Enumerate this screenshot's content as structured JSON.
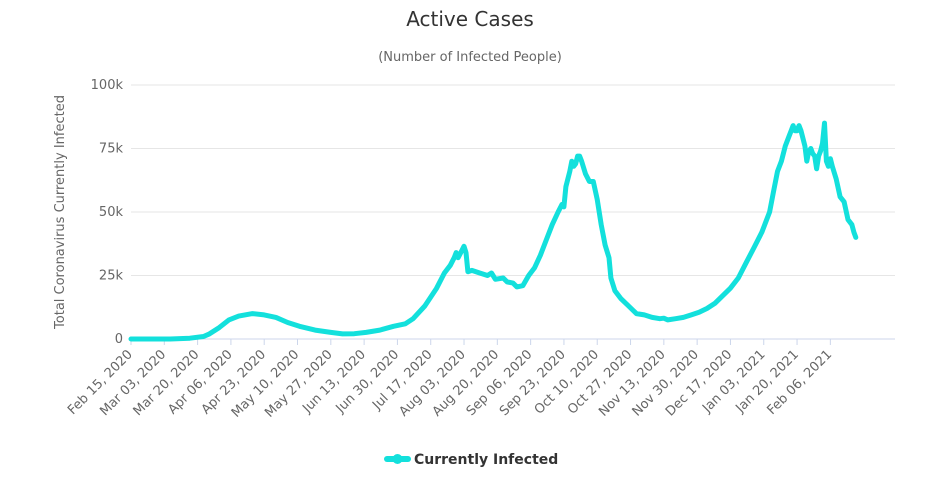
{
  "chart_data": {
    "type": "line",
    "title": "Active Cases",
    "subtitle": "(Number of Infected People)",
    "ylabel": "Total Coronavirus Currently Infected",
    "xlabel": "",
    "ylim": [
      0,
      100000
    ],
    "y_ticks": [
      0,
      25000,
      50000,
      75000,
      100000
    ],
    "y_tick_labels": [
      "0",
      "25k",
      "50k",
      "75k",
      "100k"
    ],
    "x_range": [
      0,
      390
    ],
    "x_ticks": [
      0,
      17,
      34,
      51,
      68,
      85,
      102,
      119,
      136,
      153,
      170,
      187,
      204,
      221,
      238,
      255,
      272,
      289,
      306,
      323,
      340,
      357
    ],
    "x_tick_labels": [
      "Feb 15, 2020",
      "Mar 03, 2020",
      "Mar 20, 2020",
      "Apr 06, 2020",
      "Apr 23, 2020",
      "May 10, 2020",
      "May 27, 2020",
      "Jun 13, 2020",
      "Jun 30, 2020",
      "Jul 17, 2020",
      "Aug 03, 2020",
      "Aug 20, 2020",
      "Sep 06, 2020",
      "Sep 23, 2020",
      "Oct 10, 2020",
      "Oct 27, 2020",
      "Nov 13, 2020",
      "Nov 30, 2020",
      "Dec 17, 2020",
      "Jan 03, 2021",
      "Jan 20, 2021",
      "Feb 06, 2021"
    ],
    "grid": true,
    "legend_position": "bottom-center",
    "series": [
      {
        "name": "Currently Infected",
        "color": "#13e0dc",
        "points": [
          [
            0,
            0
          ],
          [
            10,
            0
          ],
          [
            20,
            0
          ],
          [
            30,
            300
          ],
          [
            37,
            1000
          ],
          [
            40,
            2000
          ],
          [
            45,
            4500
          ],
          [
            50,
            7500
          ],
          [
            55,
            9000
          ],
          [
            62,
            10000
          ],
          [
            68,
            9500
          ],
          [
            74,
            8500
          ],
          [
            80,
            6500
          ],
          [
            86,
            5000
          ],
          [
            94,
            3500
          ],
          [
            102,
            2600
          ],
          [
            108,
            2000
          ],
          [
            114,
            2100
          ],
          [
            120,
            2600
          ],
          [
            127,
            3500
          ],
          [
            134,
            5000
          ],
          [
            140,
            6000
          ],
          [
            144,
            8000
          ],
          [
            150,
            13000
          ],
          [
            156,
            20000
          ],
          [
            160,
            26000
          ],
          [
            163,
            29000
          ],
          [
            165,
            32000
          ],
          [
            166,
            34000
          ],
          [
            167,
            32000
          ],
          [
            169,
            35000
          ],
          [
            170,
            36500
          ],
          [
            171,
            34000
          ],
          [
            172,
            26500
          ],
          [
            174,
            27000
          ],
          [
            178,
            26000
          ],
          [
            182,
            25000
          ],
          [
            184,
            26000
          ],
          [
            186,
            23500
          ],
          [
            190,
            24000
          ],
          [
            192,
            22500
          ],
          [
            195,
            22000
          ],
          [
            197,
            20500
          ],
          [
            200,
            21000
          ],
          [
            203,
            25000
          ],
          [
            206,
            28000
          ],
          [
            209,
            33000
          ],
          [
            212,
            39000
          ],
          [
            215,
            45000
          ],
          [
            218,
            50000
          ],
          [
            220,
            53000
          ],
          [
            221,
            52000
          ],
          [
            222,
            60000
          ],
          [
            224,
            66000
          ],
          [
            225,
            70000
          ],
          [
            226,
            68000
          ],
          [
            227,
            69000
          ],
          [
            228,
            72000
          ],
          [
            229,
            72000
          ],
          [
            230,
            70000
          ],
          [
            232,
            65000
          ],
          [
            234,
            62000
          ],
          [
            236,
            62000
          ],
          [
            238,
            55000
          ],
          [
            240,
            45000
          ],
          [
            242,
            37000
          ],
          [
            244,
            32000
          ],
          [
            245,
            24000
          ],
          [
            247,
            19000
          ],
          [
            250,
            16000
          ],
          [
            254,
            13000
          ],
          [
            258,
            10000
          ],
          [
            262,
            9500
          ],
          [
            266,
            8500
          ],
          [
            270,
            8000
          ],
          [
            272,
            8200
          ],
          [
            274,
            7500
          ],
          [
            278,
            8000
          ],
          [
            282,
            8500
          ],
          [
            286,
            9500
          ],
          [
            290,
            10500
          ],
          [
            294,
            12000
          ],
          [
            298,
            14000
          ],
          [
            302,
            17000
          ],
          [
            306,
            20000
          ],
          [
            310,
            24000
          ],
          [
            314,
            30000
          ],
          [
            318,
            36000
          ],
          [
            322,
            42000
          ],
          [
            326,
            50000
          ],
          [
            328,
            58000
          ],
          [
            330,
            66000
          ],
          [
            332,
            70000
          ],
          [
            334,
            76000
          ],
          [
            336,
            80000
          ],
          [
            337,
            82000
          ],
          [
            338,
            84000
          ],
          [
            339,
            82000
          ],
          [
            340,
            82000
          ],
          [
            341,
            84000
          ],
          [
            342,
            82000
          ],
          [
            344,
            76000
          ],
          [
            345,
            70000
          ],
          [
            346,
            74000
          ],
          [
            347,
            75000
          ],
          [
            348,
            73000
          ],
          [
            349,
            72000
          ],
          [
            350,
            67000
          ],
          [
            351,
            72000
          ],
          [
            352,
            74000
          ],
          [
            353,
            77000
          ],
          [
            354,
            85000
          ],
          [
            355,
            70000
          ],
          [
            356,
            68000
          ],
          [
            357,
            71000
          ],
          [
            358,
            68000
          ],
          [
            360,
            63000
          ],
          [
            362,
            56000
          ],
          [
            364,
            54000
          ],
          [
            366,
            47000
          ],
          [
            368,
            45000
          ],
          [
            369,
            42000
          ],
          [
            370,
            40000
          ]
        ]
      }
    ]
  }
}
